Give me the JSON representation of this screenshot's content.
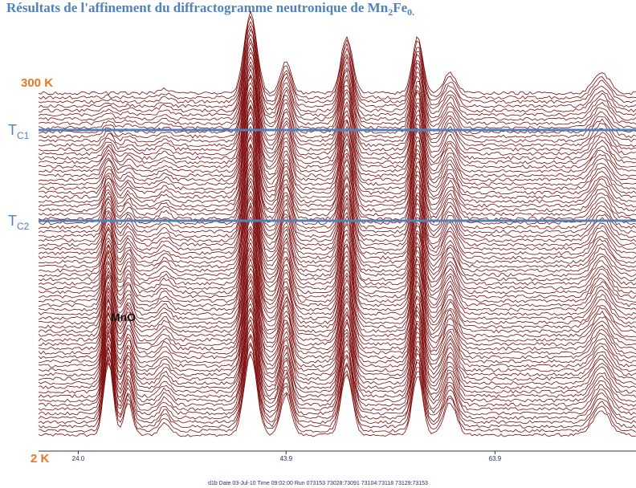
{
  "chart_data": {
    "type": "waterfall",
    "title": [
      "Résultats de l'affinement du diffractogramme neutronique de Mn",
      "2",
      "Fe",
      "0."
    ],
    "top_label": "300 K",
    "bottom_label": "2 K",
    "tc1": [
      "T",
      "C1"
    ],
    "tc2": [
      "T",
      "C2"
    ],
    "annotation": "MnO",
    "footer": "d1b Date 03-Jul-10 Time 09:02:00 Run 073153 73028:73091 73104:73118 73129:73153",
    "xlim": [
      20.2,
      77.4
    ],
    "xticks": [
      {
        "value": 24,
        "label": "24.0"
      },
      43.9,
      63.9
    ],
    "traces": 80,
    "color": "#7a0a0a",
    "peaks": [
      {
        "x": 26.9,
        "i_low": 18,
        "i_high": 0,
        "width": 0.45
      },
      {
        "x": 28.8,
        "i_low": 8,
        "i_high": 0,
        "width": 0.4
      },
      {
        "x": 32.3,
        "i_low": 3,
        "i_high": 1,
        "width": 0.5
      },
      {
        "x": 40.5,
        "i_low": 20,
        "i_high": 20,
        "width": 0.6
      },
      {
        "x": 43.9,
        "i_low": 10,
        "i_high": 8,
        "width": 0.5
      },
      {
        "x": 49.7,
        "i_low": 15,
        "i_high": 14,
        "width": 0.55
      },
      {
        "x": 56.5,
        "i_low": 15,
        "i_high": 14,
        "width": 0.5
      },
      {
        "x": 59.6,
        "i_low": 8,
        "i_high": 5,
        "width": 0.6
      },
      {
        "x": 74.1,
        "i_low": 6,
        "i_high": 5,
        "width": 0.8
      }
    ]
  }
}
